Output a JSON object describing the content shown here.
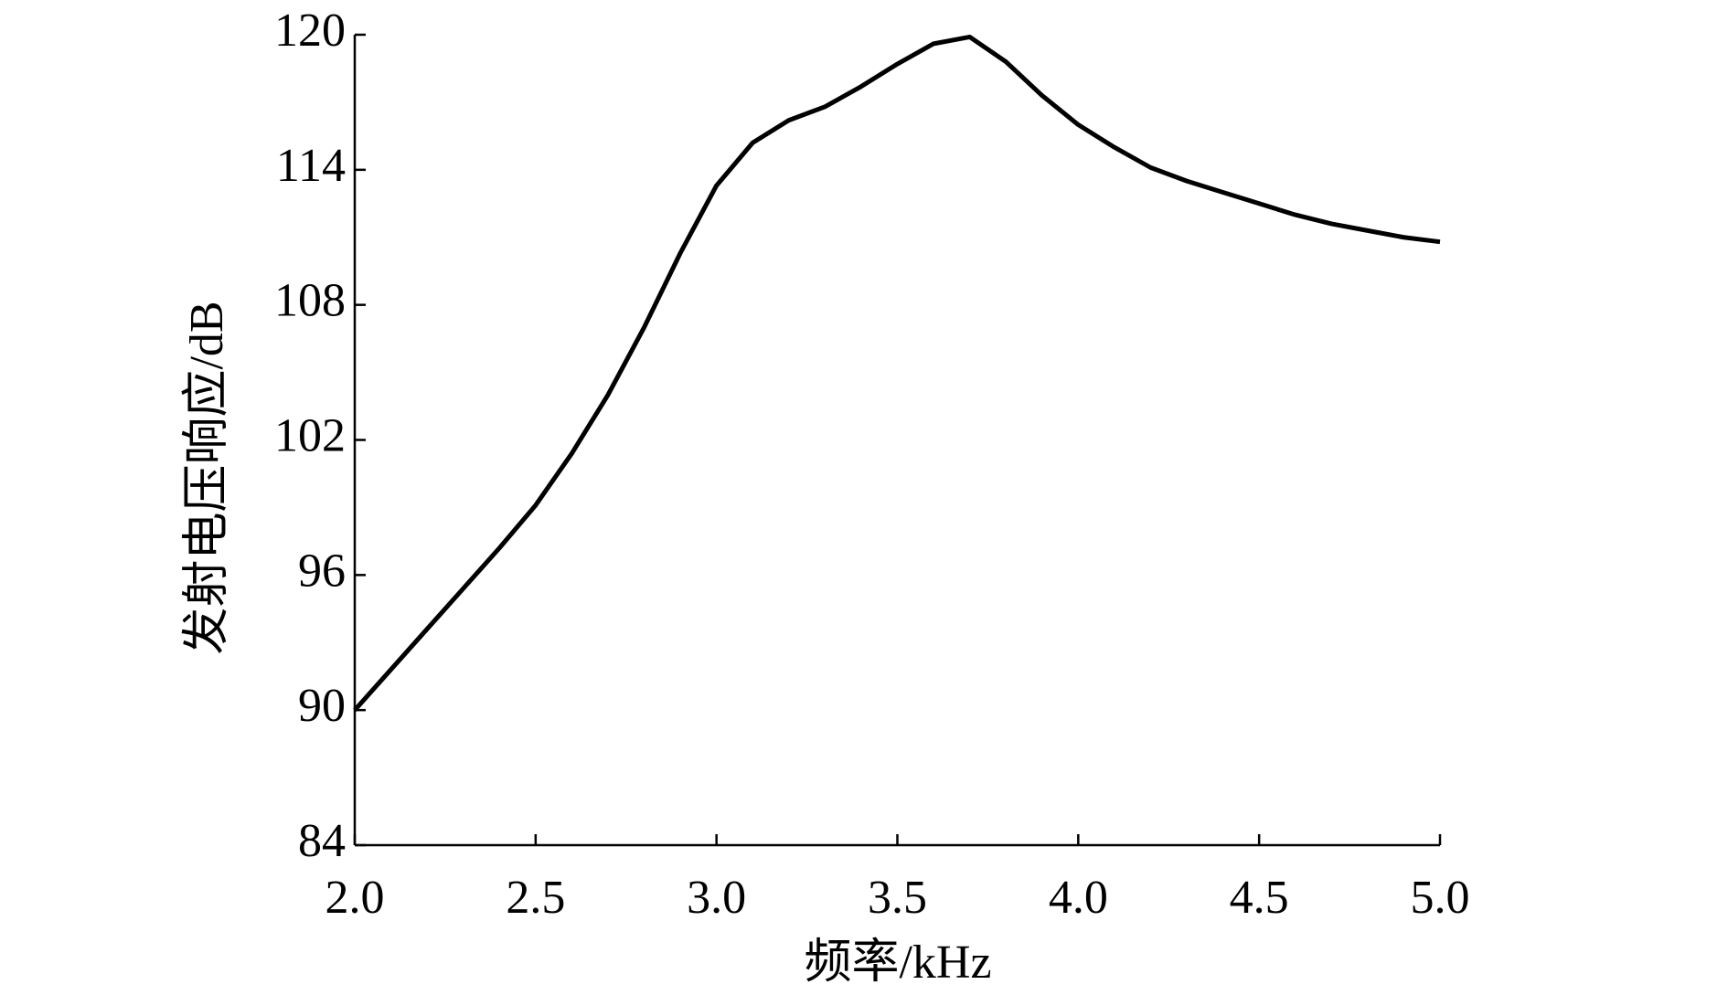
{
  "chart_data": {
    "type": "line",
    "x_label": "频率/kHz",
    "y_label": "发射电压响应/dB",
    "x": [
      2.0,
      2.1,
      2.2,
      2.3,
      2.4,
      2.5,
      2.6,
      2.7,
      2.8,
      2.9,
      3.0,
      3.1,
      3.2,
      3.3,
      3.4,
      3.5,
      3.6,
      3.7,
      3.8,
      3.9,
      4.0,
      4.1,
      4.2,
      4.3,
      4.4,
      4.5,
      4.6,
      4.7,
      4.8,
      4.9,
      5.0
    ],
    "series": [
      {
        "color": "#000000",
        "values": [
          90,
          91.8,
          93.6,
          95.4,
          97.2,
          99.1,
          101.4,
          104.0,
          107.0,
          110.3,
          113.3,
          115.2,
          116.2,
          116.8,
          117.7,
          118.7,
          119.6,
          119.9,
          118.8,
          117.3,
          116.0,
          115.0,
          114.1,
          113.5,
          113.0,
          112.5,
          112.0,
          111.6,
          111.3,
          111.0,
          110.8
        ]
      }
    ],
    "xlim": [
      2.0,
      5.0
    ],
    "ylim": [
      84,
      120
    ],
    "xticks": [
      {
        "value": 2.0,
        "label": "2.0"
      },
      {
        "value": 2.5,
        "label": "2.5"
      },
      {
        "value": 3.0,
        "label": "3.0"
      },
      {
        "value": 3.5,
        "label": "3.5"
      },
      {
        "value": 4.0,
        "label": "4.0"
      },
      {
        "value": 4.5,
        "label": "4.5"
      },
      {
        "value": 5.0,
        "label": "5.0"
      }
    ],
    "yticks": [
      84,
      90,
      96,
      102,
      108,
      114,
      120
    ],
    "grid": false
  }
}
